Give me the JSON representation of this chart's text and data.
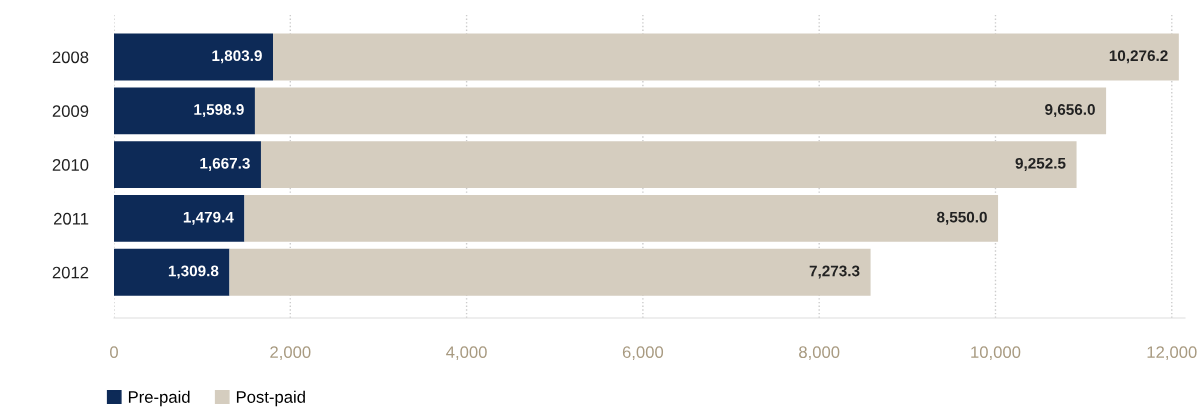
{
  "chart_data": {
    "type": "bar",
    "orientation": "horizontal",
    "stacked": true,
    "categories": [
      "2008",
      "2009",
      "2010",
      "2011",
      "2012"
    ],
    "series": [
      {
        "name": "Pre-paid",
        "color": "#0d2a57",
        "values": [
          1803.9,
          1598.9,
          1667.3,
          1479.4,
          1309.8
        ],
        "value_labels": [
          "1,803.9",
          "1,598.9",
          "1,667.3",
          "1,479.4",
          "1,309.8"
        ]
      },
      {
        "name": "Post-paid",
        "color": "#d5cdbf",
        "values": [
          10276.2,
          9656.0,
          9252.5,
          8550.0,
          7273.3
        ],
        "value_labels": [
          "10,276.2",
          "9,656.0",
          "9,252.5",
          "8,550.0",
          "7,273.3"
        ]
      }
    ],
    "xlim": [
      0,
      12150
    ],
    "xticks": [
      {
        "value": 0,
        "label": "0"
      },
      {
        "value": 2000,
        "label": "2,000"
      },
      {
        "value": 4000,
        "label": "4,000"
      },
      {
        "value": 6000,
        "label": "6,000"
      },
      {
        "value": 8000,
        "label": "8,000"
      },
      {
        "value": 10000,
        "label": "10,000"
      },
      {
        "value": 12000,
        "label": "12,000"
      }
    ],
    "grid": "x",
    "legend": "bottom left"
  }
}
